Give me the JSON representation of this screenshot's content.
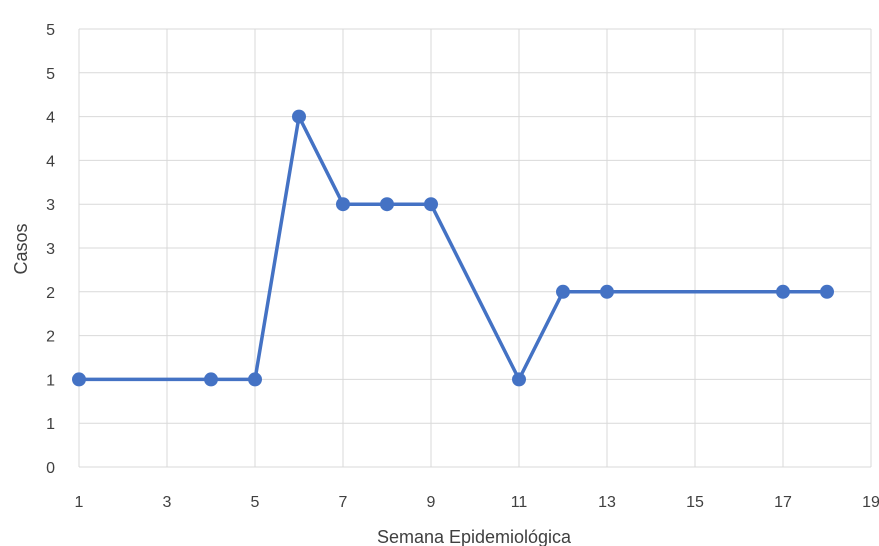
{
  "chart_data": {
    "type": "line",
    "xlabel": "Semana Epidemiológica",
    "ylabel": "Casos",
    "xlim": [
      1,
      19
    ],
    "ylim": [
      0,
      5
    ],
    "x_ticks": [
      1,
      3,
      5,
      7,
      9,
      11,
      13,
      15,
      17,
      19
    ],
    "y_ticks": [
      0,
      0.5,
      1,
      1.5,
      2,
      2.5,
      3,
      3.5,
      4,
      4.5,
      5
    ],
    "y_tick_labels": [
      "0",
      "1",
      "1",
      "2",
      "2",
      "3",
      "3",
      "4",
      "4",
      "5",
      "5"
    ],
    "grid": true,
    "legend": "none",
    "series": [
      {
        "color": "#4472C4",
        "points": [
          {
            "x": 1,
            "y": 1
          },
          {
            "x": 4,
            "y": 1
          },
          {
            "x": 5,
            "y": 1
          },
          {
            "x": 6,
            "y": 4
          },
          {
            "x": 7,
            "y": 3
          },
          {
            "x": 8,
            "y": 3
          },
          {
            "x": 9,
            "y": 3
          },
          {
            "x": 11,
            "y": 1
          },
          {
            "x": 12,
            "y": 2
          },
          {
            "x": 13,
            "y": 2
          },
          {
            "x": 17,
            "y": 2
          },
          {
            "x": 18,
            "y": 2
          }
        ]
      }
    ],
    "colors": {
      "line": "#4472C4",
      "grid": "#d9d9d9",
      "text": "#404040"
    }
  }
}
